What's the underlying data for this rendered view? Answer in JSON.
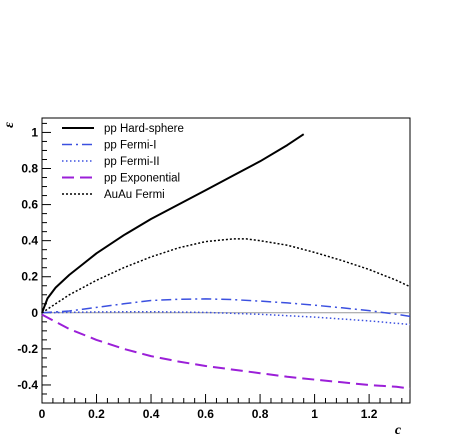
{
  "chart_data": {
    "type": "line",
    "title": "",
    "xlabel": "c",
    "ylabel": "ε",
    "xlim": [
      0,
      1.35
    ],
    "ylim": [
      -0.5,
      1.08
    ],
    "x_ticks": [
      0,
      0.2,
      0.4,
      0.6,
      0.8,
      1,
      1.2
    ],
    "x_tick_labels": [
      "0",
      "0.2",
      "0.4",
      "0.6",
      "0.8",
      "1",
      "1.2"
    ],
    "y_ticks": [
      -0.4,
      -0.2,
      0,
      0.2,
      0.4,
      0.6,
      0.8,
      1
    ],
    "y_tick_labels": [
      "-0.4",
      "-0.2",
      "0",
      "0.2",
      "0.4",
      "0.6",
      "0.8",
      "1"
    ],
    "grid": false,
    "legend_position": "top-left",
    "series": [
      {
        "name": "pp Hard-sphere",
        "color": "#000000",
        "dash": "solid",
        "x": [
          0,
          0.02,
          0.05,
          0.1,
          0.15,
          0.2,
          0.3,
          0.4,
          0.5,
          0.6,
          0.7,
          0.8,
          0.9,
          0.96
        ],
        "y": [
          0,
          0.08,
          0.14,
          0.21,
          0.27,
          0.33,
          0.43,
          0.52,
          0.6,
          0.68,
          0.76,
          0.84,
          0.93,
          0.99
        ]
      },
      {
        "name": "pp Fermi-I",
        "color": "#3b50e0",
        "dash": "dashdot",
        "x": [
          0,
          0.1,
          0.2,
          0.3,
          0.4,
          0.5,
          0.6,
          0.7,
          0.8,
          0.9,
          1.0,
          1.1,
          1.2,
          1.3,
          1.35
        ],
        "y": [
          0,
          0.01,
          0.03,
          0.05,
          0.068,
          0.075,
          0.077,
          0.073,
          0.065,
          0.055,
          0.042,
          0.028,
          0.012,
          -0.008,
          -0.02
        ]
      },
      {
        "name": "pp Fermi-II",
        "color": "#3b50e0",
        "dash": "dotted",
        "x": [
          0,
          0.2,
          0.4,
          0.6,
          0.8,
          1.0,
          1.2,
          1.35
        ],
        "y": [
          0,
          0.005,
          0.006,
          0.002,
          -0.008,
          -0.024,
          -0.045,
          -0.065
        ]
      },
      {
        "name": "pp Exponential",
        "color": "#9b1fd8",
        "dash": "longdash",
        "x": [
          0,
          0.05,
          0.1,
          0.2,
          0.3,
          0.4,
          0.5,
          0.6,
          0.7,
          0.8,
          0.9,
          1.0,
          1.1,
          1.2,
          1.3,
          1.35
        ],
        "y": [
          -0.01,
          -0.05,
          -0.09,
          -0.15,
          -0.2,
          -0.24,
          -0.27,
          -0.295,
          -0.315,
          -0.335,
          -0.355,
          -0.37,
          -0.385,
          -0.4,
          -0.41,
          -0.42
        ]
      },
      {
        "name": "AuAu Fermi",
        "color": "#000000",
        "dash": "dense-dotted",
        "x": [
          0,
          0.05,
          0.1,
          0.2,
          0.3,
          0.4,
          0.5,
          0.6,
          0.7,
          0.75,
          0.8,
          0.9,
          1.0,
          1.1,
          1.2,
          1.3,
          1.35
        ],
        "y": [
          0,
          0.05,
          0.1,
          0.18,
          0.25,
          0.31,
          0.36,
          0.395,
          0.41,
          0.41,
          0.4,
          0.375,
          0.335,
          0.29,
          0.24,
          0.18,
          0.145
        ]
      }
    ]
  },
  "reference_line": {
    "y": 0,
    "color": "#999999"
  }
}
